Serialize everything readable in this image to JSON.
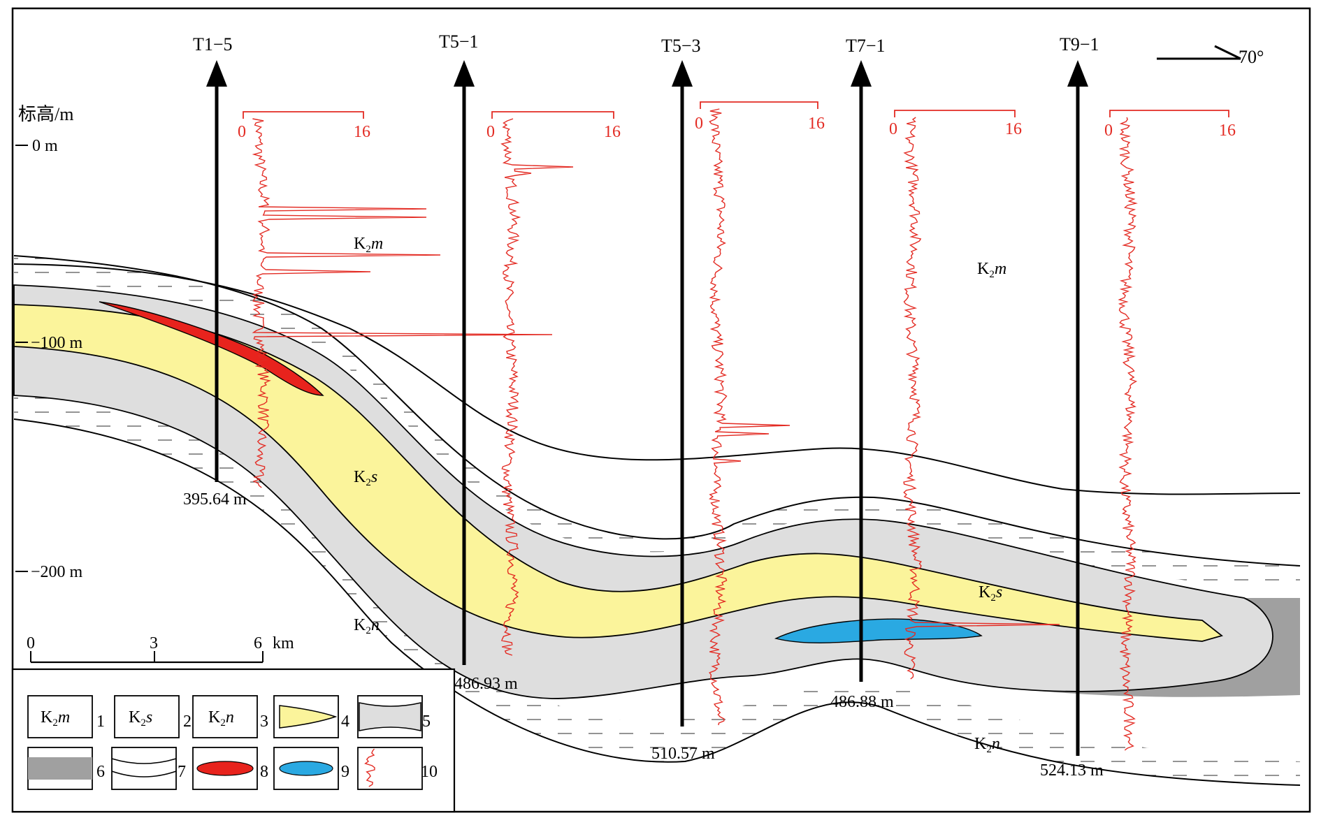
{
  "colors": {
    "K2s": "#fbf49b",
    "K2n": "#dedede",
    "dark": "#a0a0a0",
    "red_body": "#e8231d",
    "blue_body": "#2aa9e2",
    "log": "#e32b23"
  },
  "elevation_axis": {
    "title": "标高/m",
    "ticks": [
      "0 m",
      "−100 m",
      "−200 m"
    ]
  },
  "north": {
    "label": "70°"
  },
  "wells": [
    {
      "id": "T1−5",
      "depth": "395.64 m",
      "scale_min": "0",
      "scale_max": "16"
    },
    {
      "id": "T5−1",
      "depth": "486.93 m",
      "scale_min": "0",
      "scale_max": "16"
    },
    {
      "id": "T5−3",
      "depth": "510.57 m",
      "scale_min": "0",
      "scale_max": "16"
    },
    {
      "id": "T7−1",
      "depth": "486.88 m",
      "scale_min": "0",
      "scale_max": "16"
    },
    {
      "id": "T9−1",
      "depth": "524.13 m",
      "scale_min": "0",
      "scale_max": "16"
    }
  ],
  "formations": {
    "m": {
      "base": "K",
      "sub": "2",
      "suffix": "m"
    },
    "s": {
      "base": "K",
      "sub": "2",
      "suffix": "s"
    },
    "n": {
      "base": "K",
      "sub": "2",
      "suffix": "n"
    }
  },
  "scale_bar": {
    "ticks": [
      "0",
      "3",
      "6"
    ],
    "unit": "km"
  },
  "legend": {
    "numbers": [
      "1",
      "2",
      "3",
      "4",
      "5",
      "6",
      "7",
      "8",
      "9",
      "10"
    ]
  }
}
